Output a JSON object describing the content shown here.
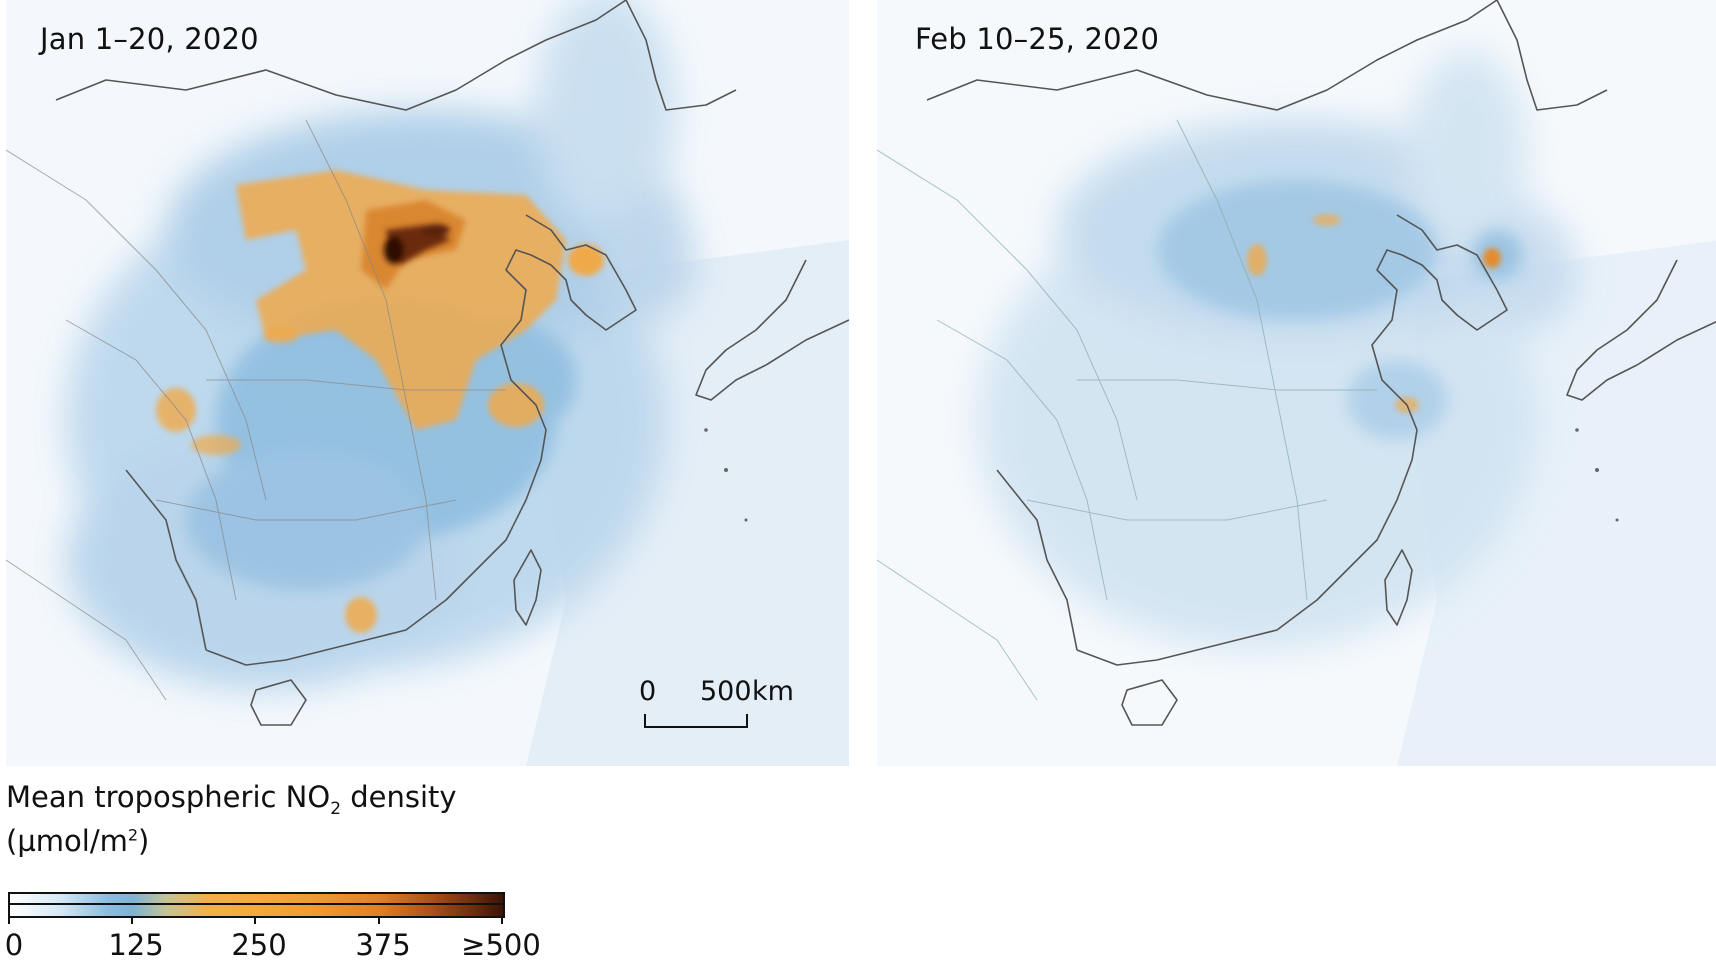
{
  "panels": {
    "left": {
      "title": "Jan 1–20, 2020"
    },
    "right": {
      "title": "Feb 10–25, 2020"
    }
  },
  "scale_bar": {
    "zero": "0",
    "value": "500",
    "unit": "km"
  },
  "legend": {
    "title_prefix": "Mean tropospheric NO",
    "title_sub": "2",
    "title_suffix": " density",
    "unit_prefix": "(µmol/m",
    "unit_sup": "2",
    "unit_suffix": ")",
    "ticks": [
      "0",
      "125",
      "250",
      "375",
      "≥500"
    ],
    "colors": [
      "#ffffff",
      "#8bbde0",
      "#f2b04a",
      "#e07f26",
      "#3d1408"
    ]
  }
}
